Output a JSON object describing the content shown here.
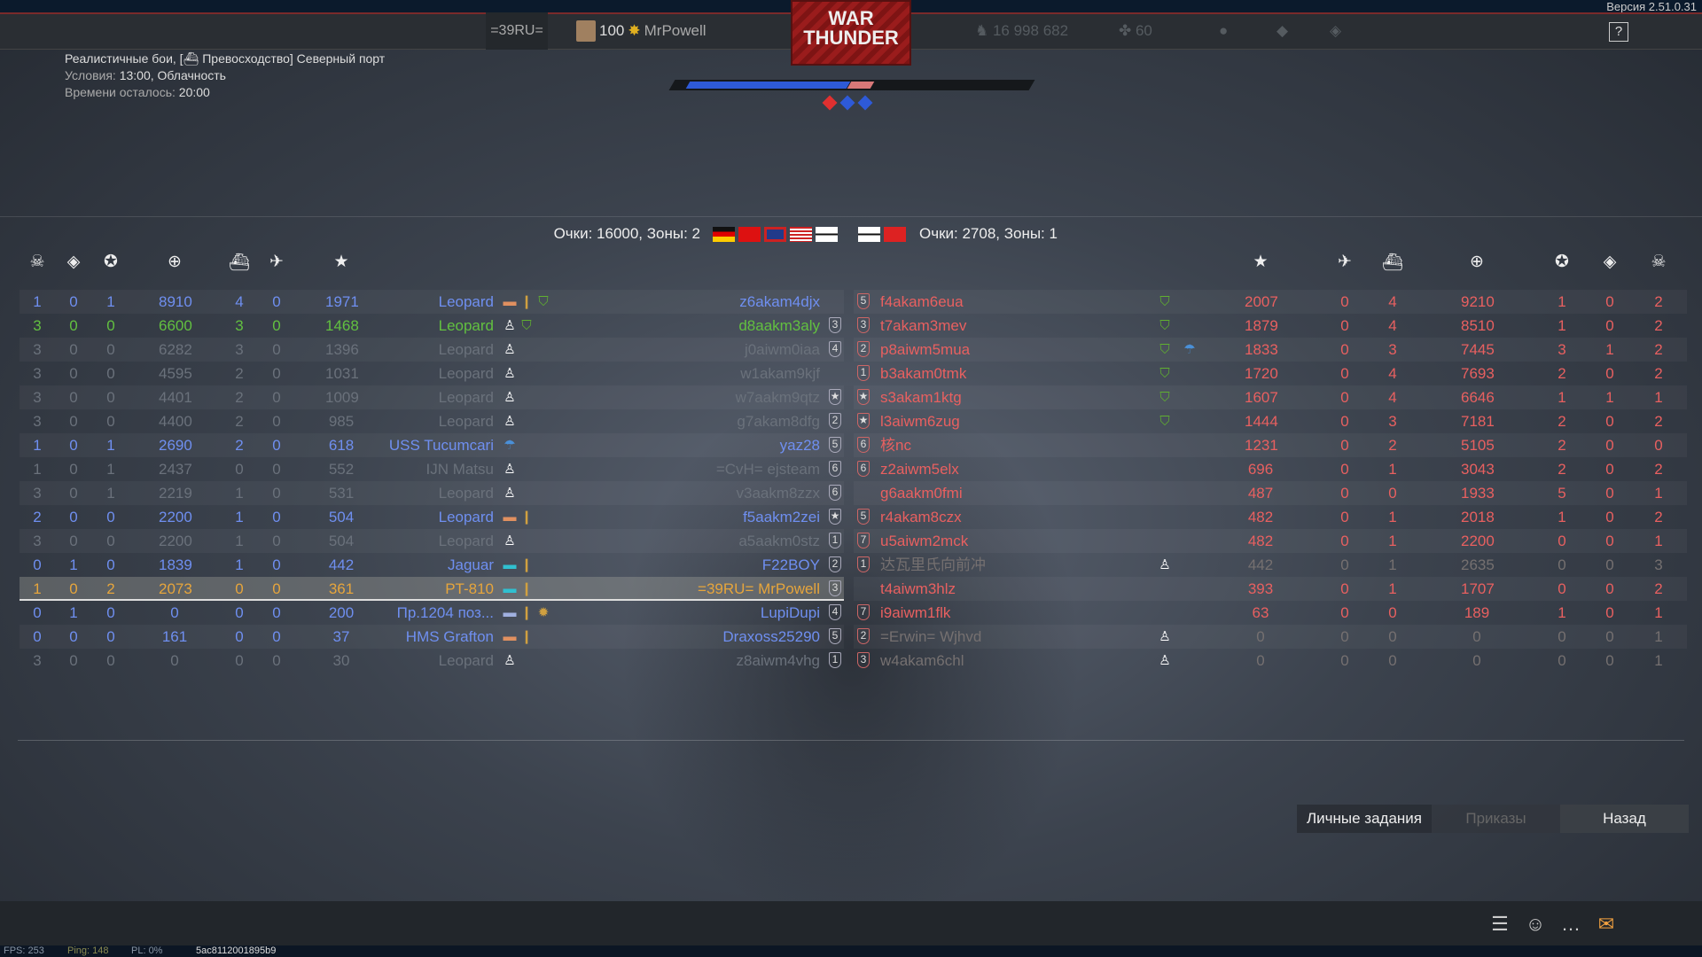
{
  "header": {
    "version": "Версия 2.51.0.31",
    "clan_tag": "=39RU=",
    "player_level": "100",
    "player_name": "MrPowell",
    "logo_top": "WAR",
    "logo_bottom": "THUNDER",
    "silver_lions": "16 998 682",
    "golden_eagles": "60",
    "help": "?"
  },
  "mission": {
    "title": "Реалистичные бои, [⛴ Превосходство] Северный порт",
    "conditions_label": "Условия:",
    "conditions_value": "13:00, Облачность",
    "time_label": "Времени осталось:",
    "time_value": "20:00"
  },
  "match": {
    "blue_share": 0.87,
    "zones": [
      {
        "owner": "red",
        "color": "#e03030"
      },
      {
        "owner": "blue",
        "color": "#2e5ad8"
      },
      {
        "owner": "blue",
        "color": "#2e5ad8"
      }
    ]
  },
  "team_left": {
    "score_text": "Очки: 16000, Зоны: 2",
    "flags": [
      "germany",
      "ussr",
      "uk",
      "usa",
      "kriegsmarine"
    ]
  },
  "team_right": {
    "score_text": "Очки: 2708, Зоны: 1",
    "flags": [
      "kriegsmarine",
      "reichskriegsflagge"
    ]
  },
  "columns": [
    "deaths-icon",
    "captures-icon",
    "assists-icon",
    "score-icon",
    "ship-kills-icon",
    "air-kills-icon",
    "rating-star-icon"
  ],
  "colors": {
    "blue": "#6f8ff0",
    "green": "#62c040",
    "dead": "#6a717b",
    "player": "#e6a53c",
    "red": "#e86060",
    "dead_red": "#757070"
  },
  "left_rows": [
    [
      "1",
      "0",
      "1",
      "8910",
      "4",
      "0",
      "1971",
      "Leopard",
      "z6akam4djx",
      "",
      "blue",
      "ship-bomb-medal"
    ],
    [
      "3",
      "0",
      "0",
      "6600",
      "3",
      "0",
      "1468",
      "Leopard",
      "d8aakm3aly",
      "3",
      "green",
      "dead-medal"
    ],
    [
      "3",
      "0",
      "0",
      "6282",
      "3",
      "0",
      "1396",
      "Leopard",
      "j0aiwm0iaa",
      "4",
      "dead",
      "dead"
    ],
    [
      "3",
      "0",
      "0",
      "4595",
      "2",
      "0",
      "1031",
      "Leopard",
      "w1akam9kjf",
      "",
      "dead",
      "dead"
    ],
    [
      "3",
      "0",
      "0",
      "4401",
      "2",
      "0",
      "1009",
      "Leopard",
      "w7aakm9qtz",
      "★",
      "dead",
      "dead"
    ],
    [
      "3",
      "0",
      "0",
      "4400",
      "2",
      "0",
      "985",
      "Leopard",
      "g7akam8dfg",
      "2",
      "dead",
      "dead"
    ],
    [
      "1",
      "0",
      "1",
      "2690",
      "2",
      "0",
      "618",
      "USS Tucumcari",
      "yaz28",
      "5",
      "blue",
      "parachute"
    ],
    [
      "1",
      "0",
      "1",
      "2437",
      "0",
      "0",
      "552",
      "IJN Matsu",
      "=CvH= ejsteam",
      "6",
      "dead",
      "dead"
    ],
    [
      "3",
      "0",
      "1",
      "2219",
      "1",
      "0",
      "531",
      "Leopard",
      "v3aakm8zzx",
      "6",
      "dead",
      "dead"
    ],
    [
      "2",
      "0",
      "0",
      "2200",
      "1",
      "0",
      "504",
      "Leopard",
      "f5aakm2zei",
      "★",
      "blue",
      "ship-bomb"
    ],
    [
      "3",
      "0",
      "0",
      "2200",
      "1",
      "0",
      "504",
      "Leopard",
      "a5aakm0stz",
      "1",
      "dead",
      "dead"
    ],
    [
      "0",
      "1",
      "0",
      "1839",
      "1",
      "0",
      "442",
      "Jaguar",
      "F22BOY",
      "2",
      "blue",
      "ship-bomb-cyan"
    ],
    [
      "1",
      "0",
      "2",
      "2073",
      "0",
      "0",
      "361",
      "PT-810",
      "=39RU= MrPowell",
      "3",
      "player",
      "ship-bomb-cyan"
    ],
    [
      "0",
      "1",
      "0",
      "0",
      "0",
      "0",
      "200",
      "Пр.1204 поз...",
      "LupiDupi",
      "4",
      "blue",
      "ship-bomb-mine"
    ],
    [
      "0",
      "0",
      "0",
      "161",
      "0",
      "0",
      "37",
      "HMS Grafton",
      "Draxoss25290",
      "5",
      "blue",
      "ship-bomb"
    ],
    [
      "3",
      "0",
      "0",
      "0",
      "0",
      "0",
      "30",
      "Leopard",
      "z8aiwm4vhg",
      "1",
      "dead",
      "dead"
    ]
  ],
  "right_rows": [
    [
      "5",
      "f4akam6eua",
      "medal",
      "2007",
      "0",
      "4",
      "9210",
      "1",
      "0",
      "2",
      "red"
    ],
    [
      "3",
      "t7akam3mev",
      "medal",
      "1879",
      "0",
      "4",
      "8510",
      "1",
      "0",
      "2",
      "red"
    ],
    [
      "2",
      "p8aiwm5mua",
      "medal-parachute",
      "1833",
      "0",
      "3",
      "7445",
      "3",
      "1",
      "2",
      "red"
    ],
    [
      "1",
      "b3akam0tmk",
      "medal",
      "1720",
      "0",
      "4",
      "7693",
      "2",
      "0",
      "2",
      "red"
    ],
    [
      "★",
      "s3akam1ktg",
      "medal",
      "1607",
      "0",
      "4",
      "6646",
      "1",
      "1",
      "1",
      "red"
    ],
    [
      "★",
      "l3aiwm6zug",
      "medal",
      "1444",
      "0",
      "3",
      "7181",
      "2",
      "0",
      "2",
      "red"
    ],
    [
      "6",
      "核nc",
      "",
      "1231",
      "0",
      "2",
      "5105",
      "2",
      "0",
      "0",
      "red"
    ],
    [
      "6",
      "z2aiwm5elx",
      "",
      "696",
      "0",
      "1",
      "3043",
      "2",
      "0",
      "2",
      "red"
    ],
    [
      "",
      "g6aakm0fmi",
      "",
      "487",
      "0",
      "0",
      "1933",
      "5",
      "0",
      "1",
      "red"
    ],
    [
      "5",
      "r4akam8czx",
      "",
      "482",
      "0",
      "1",
      "2018",
      "1",
      "0",
      "2",
      "red"
    ],
    [
      "7",
      "u5aiwm2mck",
      "",
      "482",
      "0",
      "1",
      "2200",
      "0",
      "0",
      "1",
      "red"
    ],
    [
      "1",
      "达瓦里氏向前冲",
      "dead",
      "442",
      "0",
      "1",
      "2635",
      "0",
      "0",
      "3",
      "dead_red"
    ],
    [
      "",
      "t4aiwm3hlz",
      "",
      "393",
      "0",
      "1",
      "1707",
      "0",
      "0",
      "2",
      "red"
    ],
    [
      "7",
      "i9aiwm1flk",
      "",
      "63",
      "0",
      "0",
      "189",
      "1",
      "0",
      "1",
      "red"
    ],
    [
      "2",
      "=Erwin= Wjhvd",
      "dead",
      "0",
      "0",
      "0",
      "0",
      "0",
      "0",
      "1",
      "dead_red"
    ],
    [
      "3",
      "w4akam6chl",
      "dead",
      "0",
      "0",
      "0",
      "0",
      "0",
      "0",
      "1",
      "dead_red"
    ]
  ],
  "buttons": {
    "personal_tasks": "Личные задания",
    "orders": "Приказы",
    "back": "Назад"
  },
  "footer": {
    "fps": "FPS: 253",
    "ping": "Ping: 148",
    "pl": "PL: 0%",
    "session": "5ac8112001895b9"
  }
}
